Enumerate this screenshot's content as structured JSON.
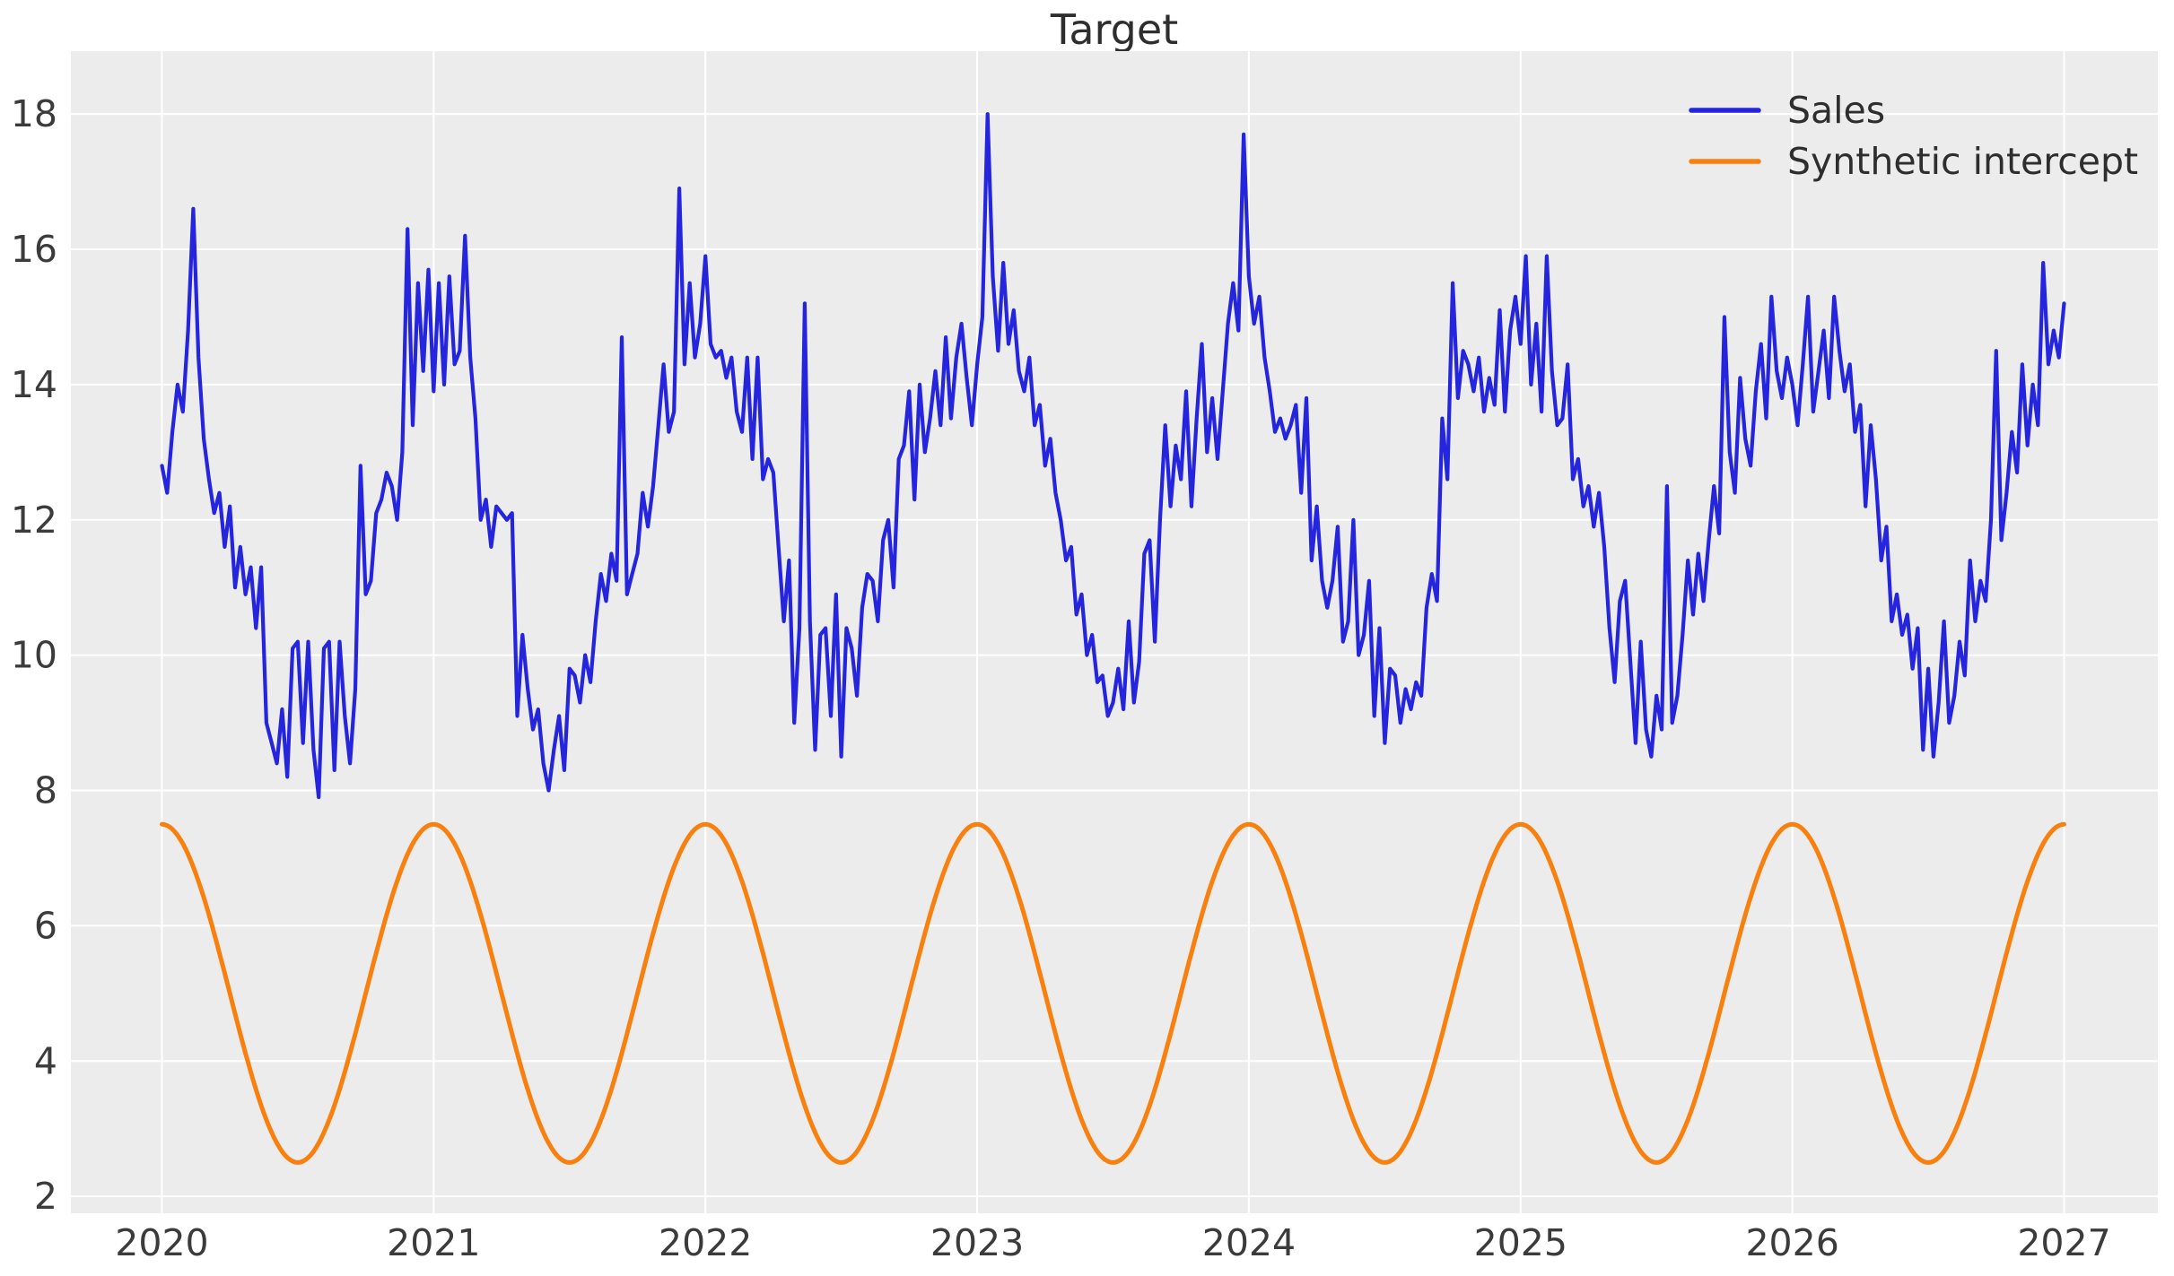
{
  "chart_data": {
    "type": "line",
    "title": "Target",
    "xlabel": "",
    "ylabel": "",
    "x_ticks": [
      "2020",
      "2021",
      "2022",
      "2023",
      "2024",
      "2025",
      "2026",
      "2027"
    ],
    "x_tick_values": [
      2020,
      2021,
      2022,
      2023,
      2024,
      2025,
      2026,
      2027
    ],
    "y_ticks": [
      "2",
      "4",
      "6",
      "8",
      "10",
      "12",
      "14",
      "16",
      "18"
    ],
    "y_tick_values": [
      2,
      4,
      6,
      8,
      10,
      12,
      14,
      16,
      18
    ],
    "xlim": [
      2019.665,
      2027.345
    ],
    "ylim": [
      1.75,
      18.93
    ],
    "grid": true,
    "legend_position": "upper right",
    "plot_background_color": "#ececec",
    "grid_color": "#ffffff",
    "tick_text_color": "#3b3b3b",
    "title_text_color": "#2e2e2e",
    "legend_items": [
      {
        "label": "Sales",
        "color": "#2525dd"
      },
      {
        "label": "Synthetic intercept",
        "color": "#f8800f"
      }
    ],
    "series": [
      {
        "name": "Sales",
        "color": "#2525dd",
        "kind": "sampled",
        "x_start": 2020.0,
        "x_step": 0.01923076923,
        "values": [
          12.8,
          12.4,
          13.3,
          14.0,
          13.6,
          14.8,
          16.6,
          14.4,
          13.2,
          12.6,
          12.1,
          12.4,
          11.6,
          12.2,
          11.0,
          11.6,
          10.9,
          11.3,
          10.4,
          11.3,
          9.0,
          8.7,
          8.4,
          9.2,
          8.2,
          10.1,
          10.2,
          8.7,
          10.2,
          8.6,
          7.9,
          10.1,
          10.2,
          8.3,
          10.2,
          9.1,
          8.4,
          9.5,
          12.8,
          10.9,
          11.1,
          12.1,
          12.3,
          12.7,
          12.5,
          12.0,
          13.0,
          16.3,
          13.4,
          15.5,
          14.2,
          15.7,
          13.9,
          15.5,
          14.0,
          15.6,
          14.3,
          14.5,
          16.2,
          14.4,
          13.5,
          12.0,
          12.3,
          11.6,
          12.2,
          12.1,
          12.0,
          12.1,
          9.1,
          10.3,
          9.5,
          8.9,
          9.2,
          8.4,
          8.0,
          8.6,
          9.1,
          8.3,
          9.8,
          9.7,
          9.3,
          10.0,
          9.6,
          10.5,
          11.2,
          10.8,
          11.5,
          11.1,
          14.7,
          10.9,
          11.2,
          11.5,
          12.4,
          11.9,
          12.5,
          13.4,
          14.3,
          13.3,
          13.6,
          16.9,
          14.3,
          15.5,
          14.4,
          14.9,
          15.9,
          14.6,
          14.4,
          14.5,
          14.1,
          14.4,
          13.6,
          13.3,
          14.4,
          12.9,
          14.4,
          12.6,
          12.9,
          12.7,
          11.6,
          10.5,
          11.4,
          9.0,
          10.4,
          15.2,
          10.5,
          8.6,
          10.3,
          10.4,
          9.1,
          10.9,
          8.5,
          10.4,
          10.1,
          9.4,
          10.7,
          11.2,
          11.1,
          10.5,
          11.7,
          12.0,
          11.0,
          12.9,
          13.1,
          13.9,
          12.3,
          14.0,
          13.0,
          13.5,
          14.2,
          13.4,
          14.7,
          13.5,
          14.4,
          14.9,
          14.1,
          13.4,
          14.3,
          15.0,
          18.0,
          15.6,
          14.5,
          15.8,
          14.6,
          15.1,
          14.2,
          13.9,
          14.4,
          13.4,
          13.7,
          12.8,
          13.2,
          12.4,
          12.0,
          11.4,
          11.6,
          10.6,
          10.9,
          10.0,
          10.3,
          9.6,
          9.7,
          9.1,
          9.3,
          9.8,
          9.2,
          10.5,
          9.3,
          9.9,
          11.5,
          11.7,
          10.2,
          12.0,
          13.4,
          12.2,
          13.1,
          12.6,
          13.9,
          12.2,
          13.5,
          14.6,
          13.0,
          13.8,
          12.9,
          13.9,
          14.9,
          15.5,
          14.8,
          17.7,
          15.6,
          14.9,
          15.3,
          14.4,
          13.9,
          13.3,
          13.5,
          13.2,
          13.4,
          13.7,
          12.4,
          13.8,
          11.4,
          12.2,
          11.1,
          10.7,
          11.1,
          11.9,
          10.2,
          10.5,
          12.0,
          10.0,
          10.3,
          11.1,
          9.1,
          10.4,
          8.7,
          9.8,
          9.7,
          9.0,
          9.5,
          9.2,
          9.6,
          9.4,
          10.7,
          11.2,
          10.8,
          13.5,
          12.6,
          15.5,
          13.8,
          14.5,
          14.3,
          13.9,
          14.4,
          13.6,
          14.1,
          13.7,
          15.1,
          13.6,
          14.8,
          15.3,
          14.6,
          15.9,
          14.0,
          14.9,
          13.6,
          15.9,
          14.2,
          13.4,
          13.5,
          14.3,
          12.6,
          12.9,
          12.2,
          12.5,
          11.9,
          12.4,
          11.6,
          10.4,
          9.6,
          10.8,
          11.1,
          9.9,
          8.7,
          10.2,
          8.9,
          8.5,
          9.4,
          8.9,
          12.5,
          9.0,
          9.4,
          10.3,
          11.4,
          10.6,
          11.5,
          10.8,
          11.7,
          12.5,
          11.8,
          15.0,
          13.0,
          12.4,
          14.1,
          13.2,
          12.8,
          13.9,
          14.6,
          13.5,
          15.3,
          14.2,
          13.8,
          14.4,
          14.0,
          13.4,
          14.3,
          15.3,
          13.6,
          14.2,
          14.8,
          13.8,
          15.3,
          14.5,
          13.9,
          14.3,
          13.3,
          13.7,
          12.2,
          13.4,
          12.6,
          11.4,
          11.9,
          10.5,
          10.9,
          10.3,
          10.6,
          9.8,
          10.4,
          8.6,
          9.8,
          8.5,
          9.3,
          10.5,
          9.0,
          9.4,
          10.2,
          9.7,
          11.4,
          10.5,
          11.1,
          10.8,
          12.0,
          14.5,
          11.7,
          12.4,
          13.3,
          12.7,
          14.3,
          13.1,
          14.0,
          13.4,
          15.8,
          14.3,
          14.8,
          14.4,
          15.2
        ]
      },
      {
        "name": "Synthetic intercept",
        "color": "#f8800f",
        "kind": "cosine",
        "mean": 5.0,
        "amplitude": 2.5,
        "period_years": 1.0,
        "peak_at": 2020.0,
        "x_start": 2020.0,
        "x_end": 2027.0,
        "y_min": 2.5,
        "y_max": 7.5
      }
    ]
  }
}
